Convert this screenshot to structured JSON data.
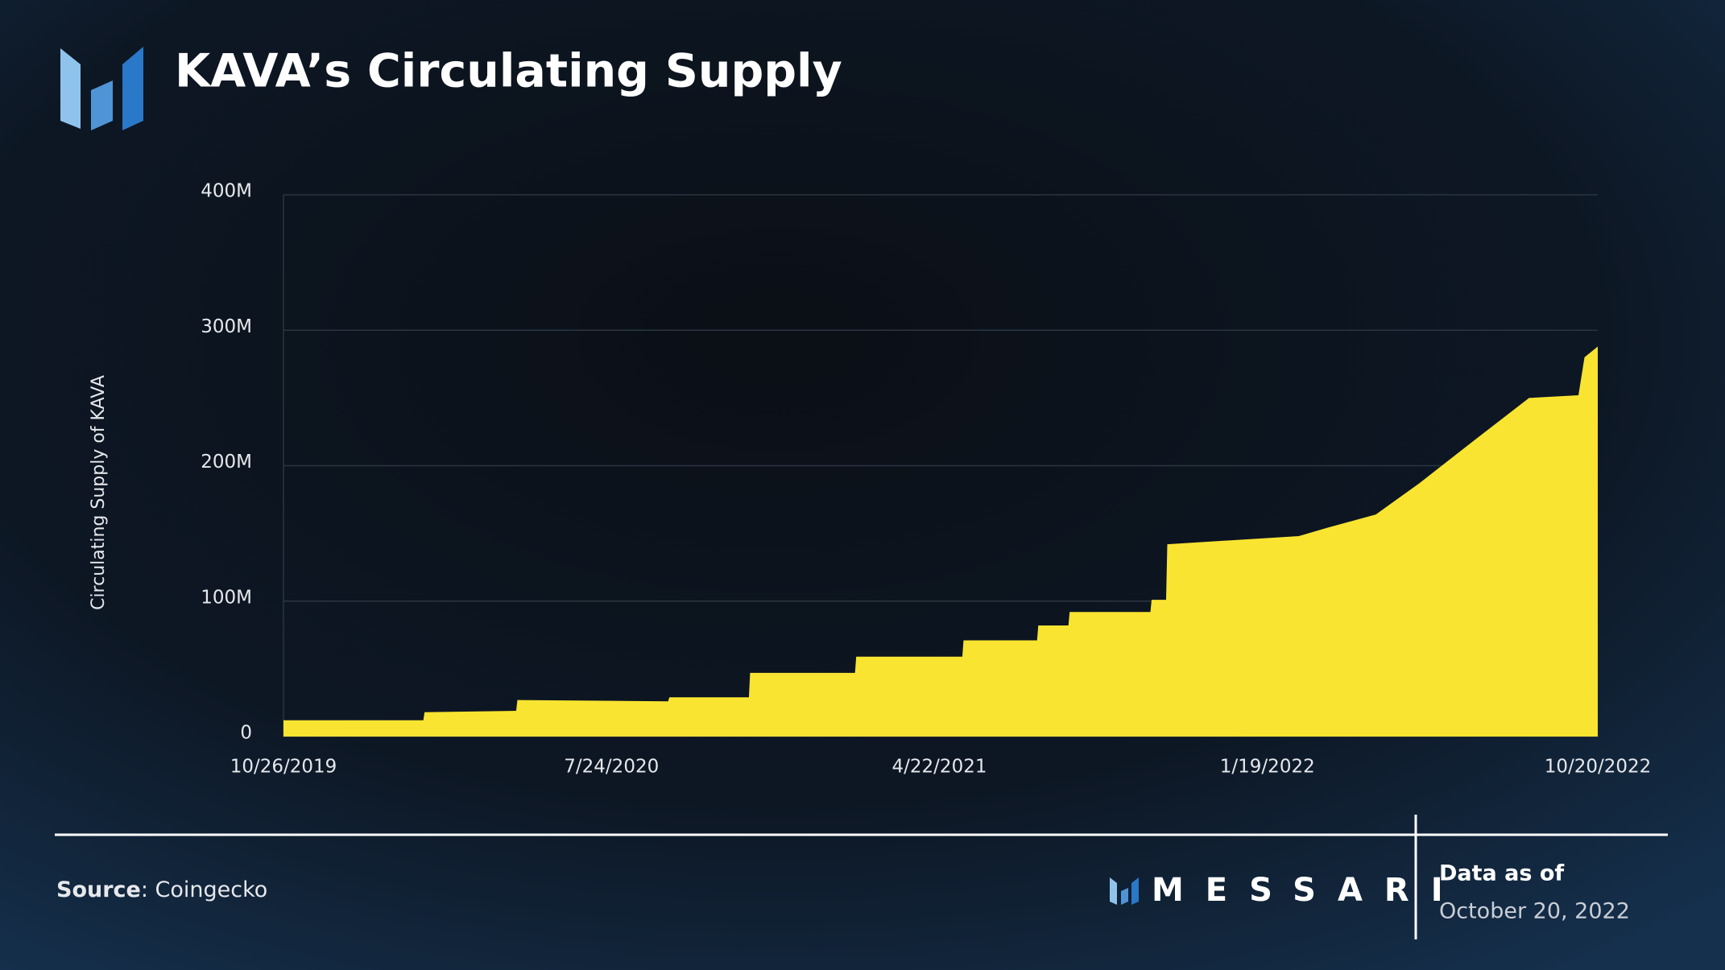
{
  "chart_data": {
    "type": "area",
    "title": "KAVA’s Circulating Supply",
    "y_label": "Circulating Supply of KAVA",
    "color": "#f9e431",
    "x": [
      "10/26/2019",
      "2/19/2020",
      "2/20/2020",
      "5/6/2020",
      "5/7/2020",
      "9/9/2020",
      "9/10/2020",
      "11/15/2020",
      "11/16/2020",
      "2/11/2021",
      "2/12/2021",
      "5/11/2021",
      "5/12/2021",
      "7/12/2021",
      "7/13/2021",
      "8/7/2021",
      "8/8/2021",
      "10/14/2021",
      "10/15/2021",
      "10/27/2021",
      "10/28/2021",
      "2/14/2022",
      "3/13/2022",
      "4/19/2022",
      "5/25/2022",
      "7/10/2022",
      "8/24/2022",
      "10/4/2022",
      "10/9/2022",
      "10/20/2022"
    ],
    "values": [
      12000000,
      12000000,
      18000000,
      19000000,
      27000000,
      26000000,
      29000000,
      29000000,
      47000000,
      47000000,
      59000000,
      59000000,
      71000000,
      71000000,
      82000000,
      82000000,
      92000000,
      92000000,
      101000000,
      101000000,
      142000000,
      148000000,
      155000000,
      164000000,
      187000000,
      219000000,
      250000000,
      252000000,
      280000000,
      288000000
    ],
    "xlim": [
      "10/26/2019",
      "10/20/2022"
    ],
    "xticks": [
      "10/26/2019",
      "7/24/2020",
      "4/22/2021",
      "1/19/2022",
      "10/20/2022"
    ],
    "ylim": [
      0,
      400000000
    ],
    "yticks": [
      0,
      {
        "value": 100000000,
        "label": "100M"
      },
      {
        "value": 200000000,
        "label": "200M"
      },
      {
        "value": 300000000,
        "label": "300M"
      },
      {
        "value": 400000000,
        "label": "400M"
      }
    ],
    "grid": true
  },
  "footer": {
    "source_label": "Source",
    "source": ": Coingecko",
    "brand": "MESSARI",
    "date_label": "Data as of",
    "date": "October 20, 2022"
  }
}
